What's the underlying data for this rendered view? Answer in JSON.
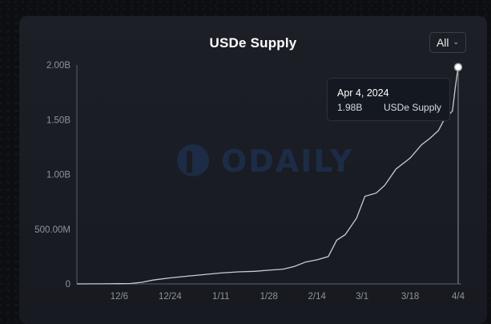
{
  "header": {
    "title": "USDe Supply",
    "range_label": "All",
    "range_icon": "chevron-down-icon"
  },
  "watermark": {
    "text": "ODAILY",
    "icon": "odaily-logo-icon"
  },
  "tooltip": {
    "date": "Apr 4, 2024",
    "value": "1.98B",
    "series": "USDe Supply"
  },
  "colors": {
    "line": "#c8ccd4",
    "axis": "#5a5f69",
    "tick_text": "#8e939c",
    "background": "#1a1d23",
    "watermark": "#1f3a63"
  },
  "chart_data": {
    "type": "line",
    "title": "USDe Supply",
    "series": [
      {
        "name": "USDe Supply"
      }
    ],
    "x_tick_labels": [
      "12/6",
      "12/24",
      "1/11",
      "1/28",
      "2/14",
      "3/1",
      "3/18",
      "4/4"
    ],
    "y_tick_labels": [
      "0",
      "500.00M",
      "1.00B",
      "1.50B",
      "2.00B"
    ],
    "ylim": [
      0,
      2000000000
    ],
    "xlim": [
      "2023-11-21",
      "2024-04-04"
    ],
    "grid": false,
    "points": [
      [
        "2023-11-21",
        0
      ],
      [
        "2023-11-28",
        1000000
      ],
      [
        "2023-12-06",
        2000000
      ],
      [
        "2023-12-10",
        4000000
      ],
      [
        "2023-12-14",
        15000000
      ],
      [
        "2023-12-18",
        35000000
      ],
      [
        "2023-12-24",
        55000000
      ],
      [
        "2023-12-30",
        70000000
      ],
      [
        "2024-01-05",
        85000000
      ],
      [
        "2024-01-11",
        100000000
      ],
      [
        "2024-01-17",
        110000000
      ],
      [
        "2024-01-23",
        115000000
      ],
      [
        "2024-01-28",
        125000000
      ],
      [
        "2024-02-02",
        135000000
      ],
      [
        "2024-02-06",
        160000000
      ],
      [
        "2024-02-10",
        200000000
      ],
      [
        "2024-02-14",
        220000000
      ],
      [
        "2024-02-18",
        250000000
      ],
      [
        "2024-02-21",
        400000000
      ],
      [
        "2024-02-24",
        450000000
      ],
      [
        "2024-02-28",
        600000000
      ],
      [
        "2024-03-02",
        800000000
      ],
      [
        "2024-03-06",
        830000000
      ],
      [
        "2024-03-09",
        900000000
      ],
      [
        "2024-03-13",
        1050000000
      ],
      [
        "2024-03-18",
        1150000000
      ],
      [
        "2024-03-22",
        1270000000
      ],
      [
        "2024-03-25",
        1330000000
      ],
      [
        "2024-03-28",
        1400000000
      ],
      [
        "2024-03-30",
        1500000000
      ],
      [
        "2024-04-02",
        1580000000
      ],
      [
        "2024-04-03",
        1800000000
      ],
      [
        "2024-04-04",
        1980000000
      ]
    ]
  }
}
